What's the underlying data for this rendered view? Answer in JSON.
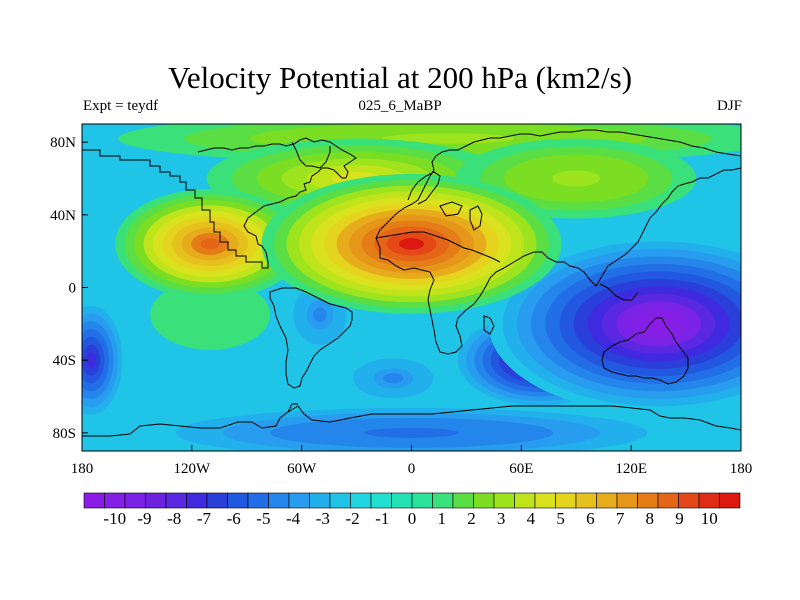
{
  "title": "Velocity Potential at 200 hPa (km2/s)",
  "left_label": "Expt = teydf",
  "center_label": "025_6_MaBP",
  "right_label": "DJF",
  "chart_data": {
    "type": "heatmap",
    "title": "Velocity Potential at 200 hPa (km2/s)",
    "xlabel": "",
    "ylabel": "",
    "x_range": [
      -180,
      180
    ],
    "y_range": [
      -90,
      90
    ],
    "x_ticks": [
      {
        "value": -180,
        "label": "180"
      },
      {
        "value": -120,
        "label": "120W"
      },
      {
        "value": -60,
        "label": "60W"
      },
      {
        "value": 0,
        "label": "0"
      },
      {
        "value": 60,
        "label": "60E"
      },
      {
        "value": 120,
        "label": "120E"
      },
      {
        "value": 180,
        "label": "180"
      }
    ],
    "y_ticks": [
      {
        "value": 80,
        "label": "80N"
      },
      {
        "value": 40,
        "label": "40N"
      },
      {
        "value": 0,
        "label": "0"
      },
      {
        "value": -40,
        "label": "40S"
      },
      {
        "value": -80,
        "label": "80S"
      }
    ],
    "colorbar": {
      "labels": [
        "-10",
        "-9",
        "-8",
        "-7",
        "-6",
        "-5",
        "-4",
        "-3",
        "-2",
        "-1",
        "0",
        "1",
        "2",
        "3",
        "4",
        "5",
        "6",
        "7",
        "8",
        "9",
        "10"
      ],
      "min": -10.5,
      "max": 10.5,
      "colors": [
        "#8a1ce6",
        "#8420e6",
        "#7a22e6",
        "#6e22e0",
        "#5a28e0",
        "#3f2ae0",
        "#2a3ed9",
        "#2258e0",
        "#226ee6",
        "#2486ea",
        "#289cee",
        "#22b0ec",
        "#20c4e6",
        "#22d6e0",
        "#22e0d0",
        "#24e2b4",
        "#2ae29a",
        "#3ae07a",
        "#5ade44",
        "#7cde22",
        "#9ee41e",
        "#c0e41c",
        "#d8e21e",
        "#e4d41e",
        "#e6c01c",
        "#e6ac1c",
        "#e69618",
        "#e47c18",
        "#e46418",
        "#e44816",
        "#e02c14",
        "#dc1810"
      ]
    },
    "field_centers": [
      {
        "name": "eurasia-north-africa-high",
        "lon": 0,
        "lat": 24,
        "value": 10
      },
      {
        "name": "north-america-high",
        "lon": -110,
        "lat": 24,
        "value": 8
      },
      {
        "name": "nw-africa-high",
        "lon": -30,
        "lat": 60,
        "value": 4
      },
      {
        "name": "arctic-high",
        "lon": 20,
        "lat": 82,
        "value": 3
      },
      {
        "name": "siberia-high",
        "lon": 90,
        "lat": 60,
        "value": 3
      },
      {
        "name": "west-pacific-low",
        "lon": 135,
        "lat": -20,
        "value": -10
      },
      {
        "name": "indian-ocean-low",
        "lon": 70,
        "lat": -40,
        "value": -9
      },
      {
        "name": "east-pacific-low",
        "lon": -175,
        "lat": -40,
        "value": -7
      },
      {
        "name": "south-america-low",
        "lon": -50,
        "lat": -15,
        "value": -4
      },
      {
        "name": "south-atlantic-low",
        "lon": -10,
        "lat": -50,
        "value": -4
      },
      {
        "name": "southern-ocean-low",
        "lon": 0,
        "lat": -80,
        "value": -5
      },
      {
        "name": "southeast-pacific-high",
        "lon": -110,
        "lat": -15,
        "value": 1
      }
    ]
  }
}
